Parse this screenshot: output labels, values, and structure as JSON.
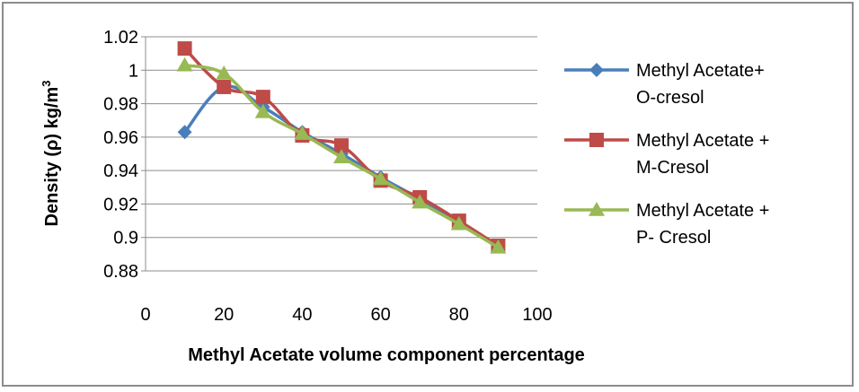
{
  "chart_data": {
    "type": "line",
    "title": "",
    "xlabel": "Methyl Acetate volume component percentage",
    "ylabel_main": "Density (ρ) kg/m",
    "ylabel_sup": "3",
    "xlim": [
      0,
      100
    ],
    "ylim": [
      0.88,
      1.02
    ],
    "x_ticks": [
      0,
      20,
      40,
      60,
      80,
      100
    ],
    "x_tick_labels": [
      "0",
      "20",
      "40",
      "60",
      "80",
      "100"
    ],
    "y_ticks": [
      0.88,
      0.9,
      0.92,
      0.94,
      0.96,
      0.98,
      1.0,
      1.02
    ],
    "y_tick_labels": [
      "0.88",
      "0.9",
      "0.92",
      "0.94",
      "0.96",
      "0.98",
      "1",
      "1.02"
    ],
    "grid": "horizontal",
    "legend_position": "right",
    "series": [
      {
        "legend_lines": [
          "Methyl Acetate+",
          "O-cresol"
        ],
        "marker": "diamond",
        "color": "#4a7ebb",
        "x": [
          10,
          20,
          30,
          40,
          50,
          60,
          70,
          80,
          90
        ],
        "y": [
          0.963,
          0.99,
          0.978,
          0.963,
          0.95,
          0.936,
          0.923,
          0.909,
          0.895
        ]
      },
      {
        "legend_lines": [
          "Methyl Acetate +",
          "M-Cresol"
        ],
        "marker": "square",
        "color": "#be4b48",
        "x": [
          10,
          20,
          30,
          40,
          50,
          60,
          70,
          80,
          90
        ],
        "y": [
          1.013,
          0.99,
          0.984,
          0.961,
          0.955,
          0.934,
          0.924,
          0.91,
          0.895
        ]
      },
      {
        "legend_lines": [
          "Methyl Acetate +",
          "P- Cresol"
        ],
        "marker": "triangle",
        "color": "#98b954",
        "x": [
          10,
          20,
          30,
          40,
          50,
          60,
          70,
          80,
          90
        ],
        "y": [
          1.003,
          0.998,
          0.975,
          0.962,
          0.948,
          0.935,
          0.921,
          0.908,
          0.894
        ]
      }
    ]
  }
}
